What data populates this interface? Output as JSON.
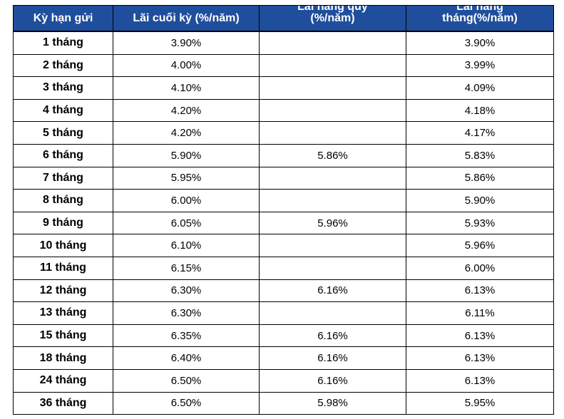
{
  "table": {
    "headers": [
      {
        "lines": [
          "Kỳ hạn gửi"
        ]
      },
      {
        "lines": [
          "Lãi cuối kỳ (%/năm)"
        ]
      },
      {
        "lines": [
          "Lãi hàng quý",
          "(%/năm)"
        ]
      },
      {
        "lines": [
          "Lãi hàng",
          "tháng(%/năm)"
        ]
      }
    ],
    "rows": [
      {
        "term": "1 tháng",
        "end": "3.90%",
        "quarterly": "",
        "monthly": "3.90%"
      },
      {
        "term": "2 tháng",
        "end": "4.00%",
        "quarterly": "",
        "monthly": "3.99%"
      },
      {
        "term": "3 tháng",
        "end": "4.10%",
        "quarterly": "",
        "monthly": "4.09%"
      },
      {
        "term": "4 tháng",
        "end": "4.20%",
        "quarterly": "",
        "monthly": "4.18%"
      },
      {
        "term": "5 tháng",
        "end": "4.20%",
        "quarterly": "",
        "monthly": "4.17%"
      },
      {
        "term": "6 tháng",
        "end": "5.90%",
        "quarterly": "5.86%",
        "monthly": "5.83%"
      },
      {
        "term": "7 tháng",
        "end": "5.95%",
        "quarterly": "",
        "monthly": "5.86%"
      },
      {
        "term": "8 tháng",
        "end": "6.00%",
        "quarterly": "",
        "monthly": "5.90%"
      },
      {
        "term": "9 tháng",
        "end": "6.05%",
        "quarterly": "5.96%",
        "monthly": "5.93%"
      },
      {
        "term": "10 tháng",
        "end": "6.10%",
        "quarterly": "",
        "monthly": "5.96%"
      },
      {
        "term": "11 tháng",
        "end": "6.15%",
        "quarterly": "",
        "monthly": "6.00%"
      },
      {
        "term": "12 tháng",
        "end": "6.30%",
        "quarterly": "6.16%",
        "monthly": "6.13%"
      },
      {
        "term": "13 tháng",
        "end": "6.30%",
        "quarterly": "",
        "monthly": "6.11%"
      },
      {
        "term": "15 tháng",
        "end": "6.35%",
        "quarterly": "6.16%",
        "monthly": "6.13%"
      },
      {
        "term": "18 tháng",
        "end": "6.40%",
        "quarterly": "6.16%",
        "monthly": "6.13%"
      },
      {
        "term": "24 tháng",
        "end": "6.50%",
        "quarterly": "6.16%",
        "monthly": "6.13%"
      },
      {
        "term": "36 tháng",
        "end": "6.50%",
        "quarterly": "5.98%",
        "monthly": "5.95%"
      }
    ]
  },
  "colors": {
    "header_bg": "#1f4e9c",
    "header_text": "#ffffff",
    "grid": "#000000"
  }
}
